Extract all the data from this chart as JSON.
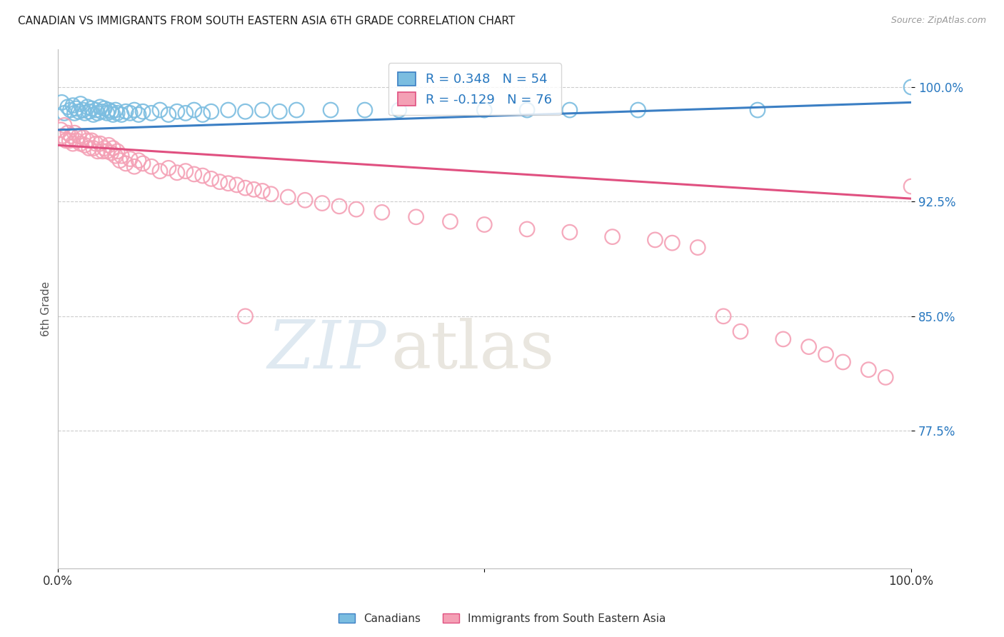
{
  "title": "CANADIAN VS IMMIGRANTS FROM SOUTH EASTERN ASIA 6TH GRADE CORRELATION CHART",
  "source": "Source: ZipAtlas.com",
  "ylabel": "6th Grade",
  "yticks": [
    0.775,
    0.85,
    0.925,
    1.0
  ],
  "ytick_labels": [
    "77.5%",
    "85.0%",
    "92.5%",
    "100.0%"
  ],
  "xlim": [
    0.0,
    1.0
  ],
  "ylim": [
    0.685,
    1.025
  ],
  "legend_blue_label": "Canadians",
  "legend_pink_label": "Immigrants from South Eastern Asia",
  "R_blue": 0.348,
  "N_blue": 54,
  "R_pink": -0.129,
  "N_pink": 76,
  "blue_color": "#7bbde0",
  "pink_color": "#f4a0b5",
  "trendline_blue_color": "#3b7fc4",
  "trendline_pink_color": "#e05080",
  "blue_dots_x": [
    0.005,
    0.008,
    0.012,
    0.015,
    0.018,
    0.02,
    0.022,
    0.025,
    0.027,
    0.03,
    0.032,
    0.035,
    0.037,
    0.04,
    0.042,
    0.045,
    0.047,
    0.05,
    0.052,
    0.055,
    0.058,
    0.06,
    0.063,
    0.065,
    0.068,
    0.07,
    0.075,
    0.08,
    0.085,
    0.09,
    0.095,
    0.1,
    0.11,
    0.12,
    0.13,
    0.14,
    0.15,
    0.16,
    0.17,
    0.18,
    0.2,
    0.22,
    0.24,
    0.26,
    0.28,
    0.32,
    0.36,
    0.4,
    0.5,
    0.55,
    0.6,
    0.68,
    0.82,
    1.0
  ],
  "blue_dots_y": [
    0.99,
    0.983,
    0.987,
    0.985,
    0.988,
    0.983,
    0.986,
    0.984,
    0.989,
    0.985,
    0.983,
    0.987,
    0.984,
    0.986,
    0.982,
    0.985,
    0.983,
    0.987,
    0.984,
    0.986,
    0.983,
    0.985,
    0.984,
    0.982,
    0.985,
    0.983,
    0.982,
    0.984,
    0.983,
    0.985,
    0.982,
    0.984,
    0.983,
    0.985,
    0.982,
    0.984,
    0.983,
    0.985,
    0.982,
    0.984,
    0.985,
    0.984,
    0.985,
    0.984,
    0.985,
    0.985,
    0.985,
    0.985,
    0.985,
    0.985,
    0.985,
    0.985,
    0.985,
    1.0
  ],
  "pink_dots_x": [
    0.004,
    0.006,
    0.008,
    0.01,
    0.012,
    0.014,
    0.016,
    0.018,
    0.02,
    0.022,
    0.025,
    0.027,
    0.03,
    0.032,
    0.035,
    0.037,
    0.04,
    0.042,
    0.045,
    0.047,
    0.05,
    0.053,
    0.055,
    0.058,
    0.06,
    0.063,
    0.065,
    0.068,
    0.07,
    0.073,
    0.075,
    0.08,
    0.085,
    0.09,
    0.095,
    0.1,
    0.11,
    0.12,
    0.13,
    0.14,
    0.15,
    0.16,
    0.17,
    0.18,
    0.19,
    0.2,
    0.21,
    0.22,
    0.23,
    0.24,
    0.25,
    0.27,
    0.29,
    0.31,
    0.33,
    0.35,
    0.38,
    0.42,
    0.46,
    0.5,
    0.55,
    0.6,
    0.65,
    0.7,
    0.72,
    0.75,
    0.78,
    0.8,
    0.85,
    0.88,
    0.9,
    0.92,
    0.95,
    0.97,
    1.0,
    0.22
  ],
  "pink_dots_y": [
    0.972,
    0.968,
    0.975,
    0.965,
    0.97,
    0.965,
    0.968,
    0.963,
    0.97,
    0.965,
    0.968,
    0.963,
    0.967,
    0.962,
    0.965,
    0.96,
    0.965,
    0.96,
    0.963,
    0.958,
    0.963,
    0.958,
    0.96,
    0.958,
    0.962,
    0.957,
    0.96,
    0.955,
    0.958,
    0.952,
    0.955,
    0.95,
    0.953,
    0.948,
    0.952,
    0.95,
    0.948,
    0.945,
    0.947,
    0.944,
    0.945,
    0.943,
    0.942,
    0.94,
    0.938,
    0.937,
    0.936,
    0.934,
    0.933,
    0.932,
    0.93,
    0.928,
    0.926,
    0.924,
    0.922,
    0.92,
    0.918,
    0.915,
    0.912,
    0.91,
    0.907,
    0.905,
    0.902,
    0.9,
    0.898,
    0.895,
    0.85,
    0.84,
    0.835,
    0.83,
    0.825,
    0.82,
    0.815,
    0.81,
    0.935,
    0.85
  ],
  "trendline_blue_start_y": 0.972,
  "trendline_blue_end_y": 0.99,
  "trendline_pink_start_y": 0.962,
  "trendline_pink_end_y": 0.927,
  "watermark_zip": "ZIP",
  "watermark_atlas": "atlas",
  "grid_color": "#cccccc",
  "background_color": "#ffffff"
}
